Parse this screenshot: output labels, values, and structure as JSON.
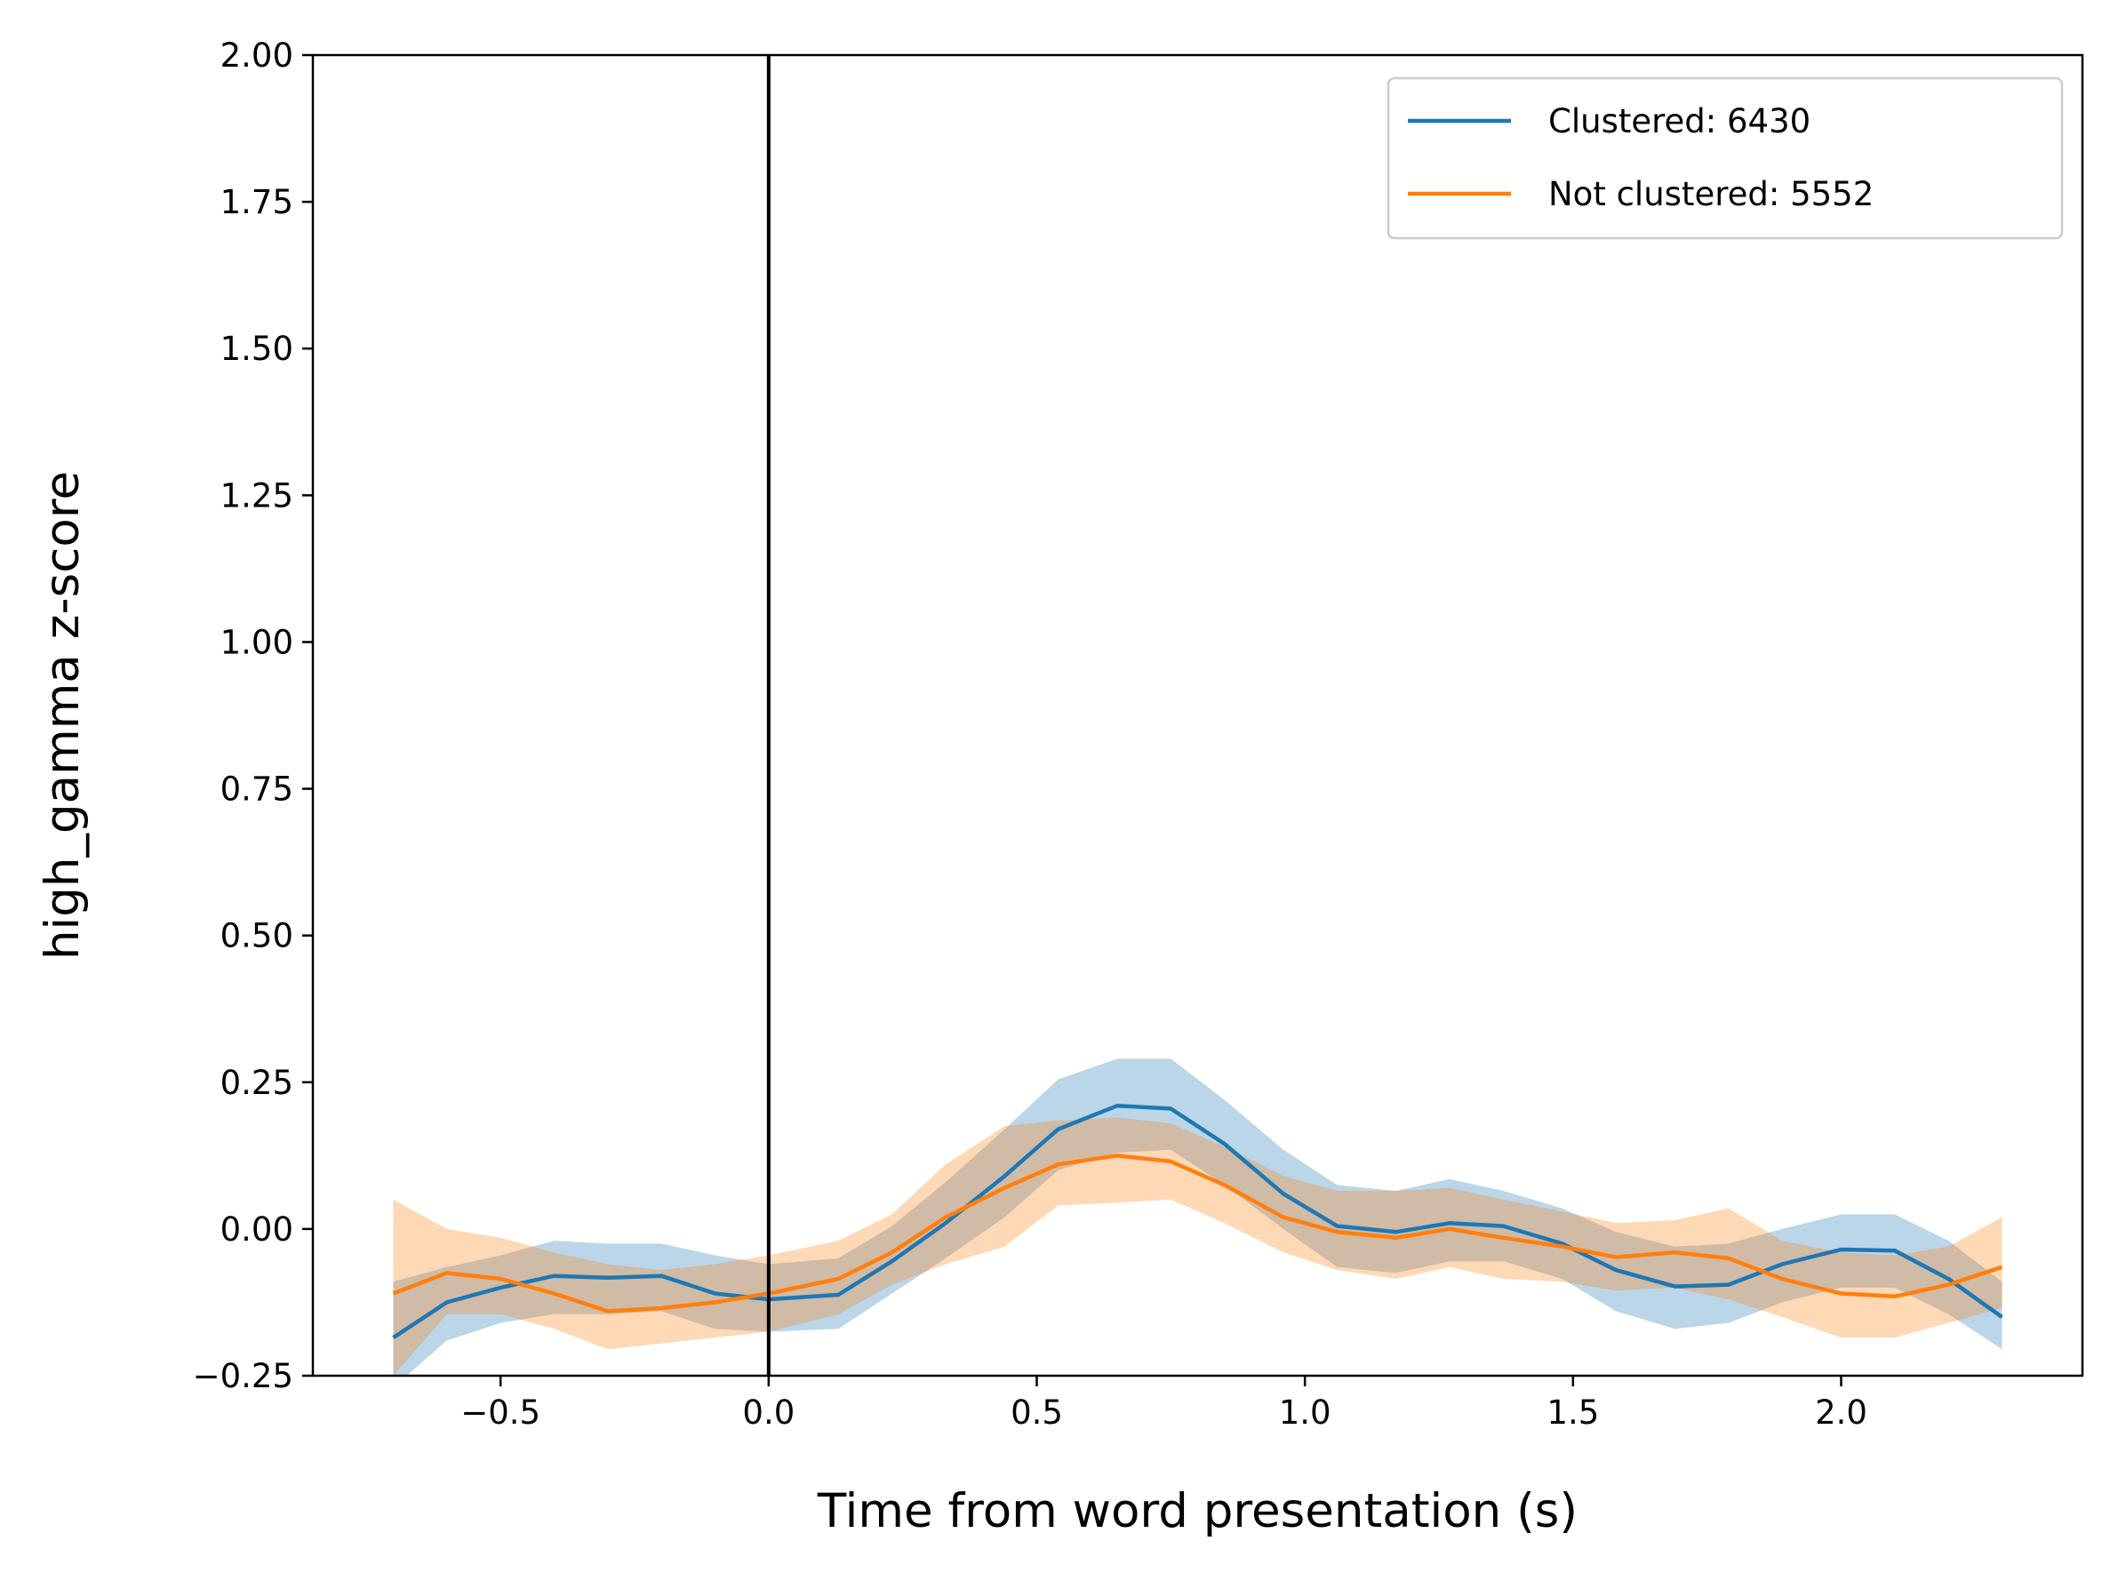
{
  "chart_data": {
    "type": "line",
    "xlabel": "Time from word presentation (s)",
    "ylabel": "high_gamma z-score",
    "xlim": [
      -0.85,
      2.45
    ],
    "ylim": [
      -0.25,
      2.0
    ],
    "xticks": [
      -0.5,
      0.0,
      0.5,
      1.0,
      1.5,
      2.0
    ],
    "xtick_labels": [
      "−0.5",
      "0.0",
      "0.5",
      "1.0",
      "1.5",
      "2.0"
    ],
    "yticks": [
      -0.25,
      0.0,
      0.25,
      0.5,
      0.75,
      1.0,
      1.25,
      1.5,
      1.75,
      2.0
    ],
    "ytick_labels": [
      "−0.25",
      "0.00",
      "0.25",
      "0.50",
      "0.75",
      "1.00",
      "1.25",
      "1.50",
      "1.75",
      "2.00"
    ],
    "vline_x": 0.0,
    "vline_color": "#000000",
    "legend_position": "top-right",
    "grid": false,
    "x": [
      -0.7,
      -0.6,
      -0.5,
      -0.4,
      -0.3,
      -0.2,
      -0.1,
      0.0,
      0.13,
      0.23,
      0.33,
      0.44,
      0.54,
      0.65,
      0.75,
      0.85,
      0.96,
      1.06,
      1.17,
      1.27,
      1.37,
      1.48,
      1.58,
      1.69,
      1.79,
      1.89,
      2.0,
      2.1,
      2.2,
      2.3
    ],
    "series": [
      {
        "name": "Clustered: 6430",
        "color": "#1f77b4",
        "fill_color": "#1f77b4",
        "fill_opacity": 0.3,
        "values": [
          -0.185,
          -0.125,
          -0.1,
          -0.08,
          -0.083,
          -0.08,
          -0.11,
          -0.12,
          -0.112,
          -0.055,
          0.01,
          0.09,
          0.17,
          0.21,
          0.205,
          0.145,
          0.06,
          0.005,
          -0.005,
          0.01,
          0.005,
          -0.025,
          -0.07,
          -0.098,
          -0.095,
          -0.06,
          -0.035,
          -0.037,
          -0.085,
          -0.15
        ],
        "lower": [
          -0.27,
          -0.19,
          -0.16,
          -0.145,
          -0.145,
          -0.14,
          -0.17,
          -0.175,
          -0.17,
          -0.11,
          -0.05,
          0.02,
          0.1,
          0.13,
          0.135,
          0.075,
          0.0,
          -0.065,
          -0.075,
          -0.055,
          -0.055,
          -0.085,
          -0.14,
          -0.17,
          -0.16,
          -0.125,
          -0.1,
          -0.1,
          -0.145,
          -0.205
        ],
        "upper": [
          -0.09,
          -0.065,
          -0.045,
          -0.02,
          -0.025,
          -0.025,
          -0.045,
          -0.06,
          -0.05,
          0.005,
          0.08,
          0.17,
          0.255,
          0.29,
          0.29,
          0.22,
          0.135,
          0.075,
          0.065,
          0.085,
          0.065,
          0.035,
          -0.005,
          -0.03,
          -0.025,
          0.0,
          0.025,
          0.025,
          -0.02,
          -0.09
        ]
      },
      {
        "name": "Not clustered: 5552",
        "color": "#ff7f0e",
        "fill_color": "#ff7f0e",
        "fill_opacity": 0.3,
        "values": [
          -0.11,
          -0.075,
          -0.085,
          -0.11,
          -0.14,
          -0.135,
          -0.125,
          -0.11,
          -0.085,
          -0.04,
          0.02,
          0.07,
          0.11,
          0.125,
          0.115,
          0.075,
          0.02,
          -0.005,
          -0.015,
          0.0,
          -0.015,
          -0.03,
          -0.048,
          -0.04,
          -0.05,
          -0.085,
          -0.11,
          -0.115,
          -0.095,
          -0.065
        ],
        "lower": [
          -0.25,
          -0.145,
          -0.145,
          -0.17,
          -0.205,
          -0.195,
          -0.185,
          -0.175,
          -0.145,
          -0.095,
          -0.06,
          -0.03,
          0.04,
          0.045,
          0.05,
          0.01,
          -0.04,
          -0.07,
          -0.085,
          -0.065,
          -0.085,
          -0.09,
          -0.105,
          -0.1,
          -0.12,
          -0.15,
          -0.185,
          -0.185,
          -0.16,
          -0.135
        ],
        "upper": [
          0.05,
          0.0,
          -0.015,
          -0.04,
          -0.06,
          -0.07,
          -0.06,
          -0.045,
          -0.02,
          0.025,
          0.11,
          0.175,
          0.185,
          0.19,
          0.18,
          0.14,
          0.09,
          0.065,
          0.065,
          0.07,
          0.05,
          0.03,
          0.01,
          0.015,
          0.035,
          -0.02,
          -0.04,
          -0.045,
          -0.03,
          0.02
        ]
      }
    ]
  }
}
